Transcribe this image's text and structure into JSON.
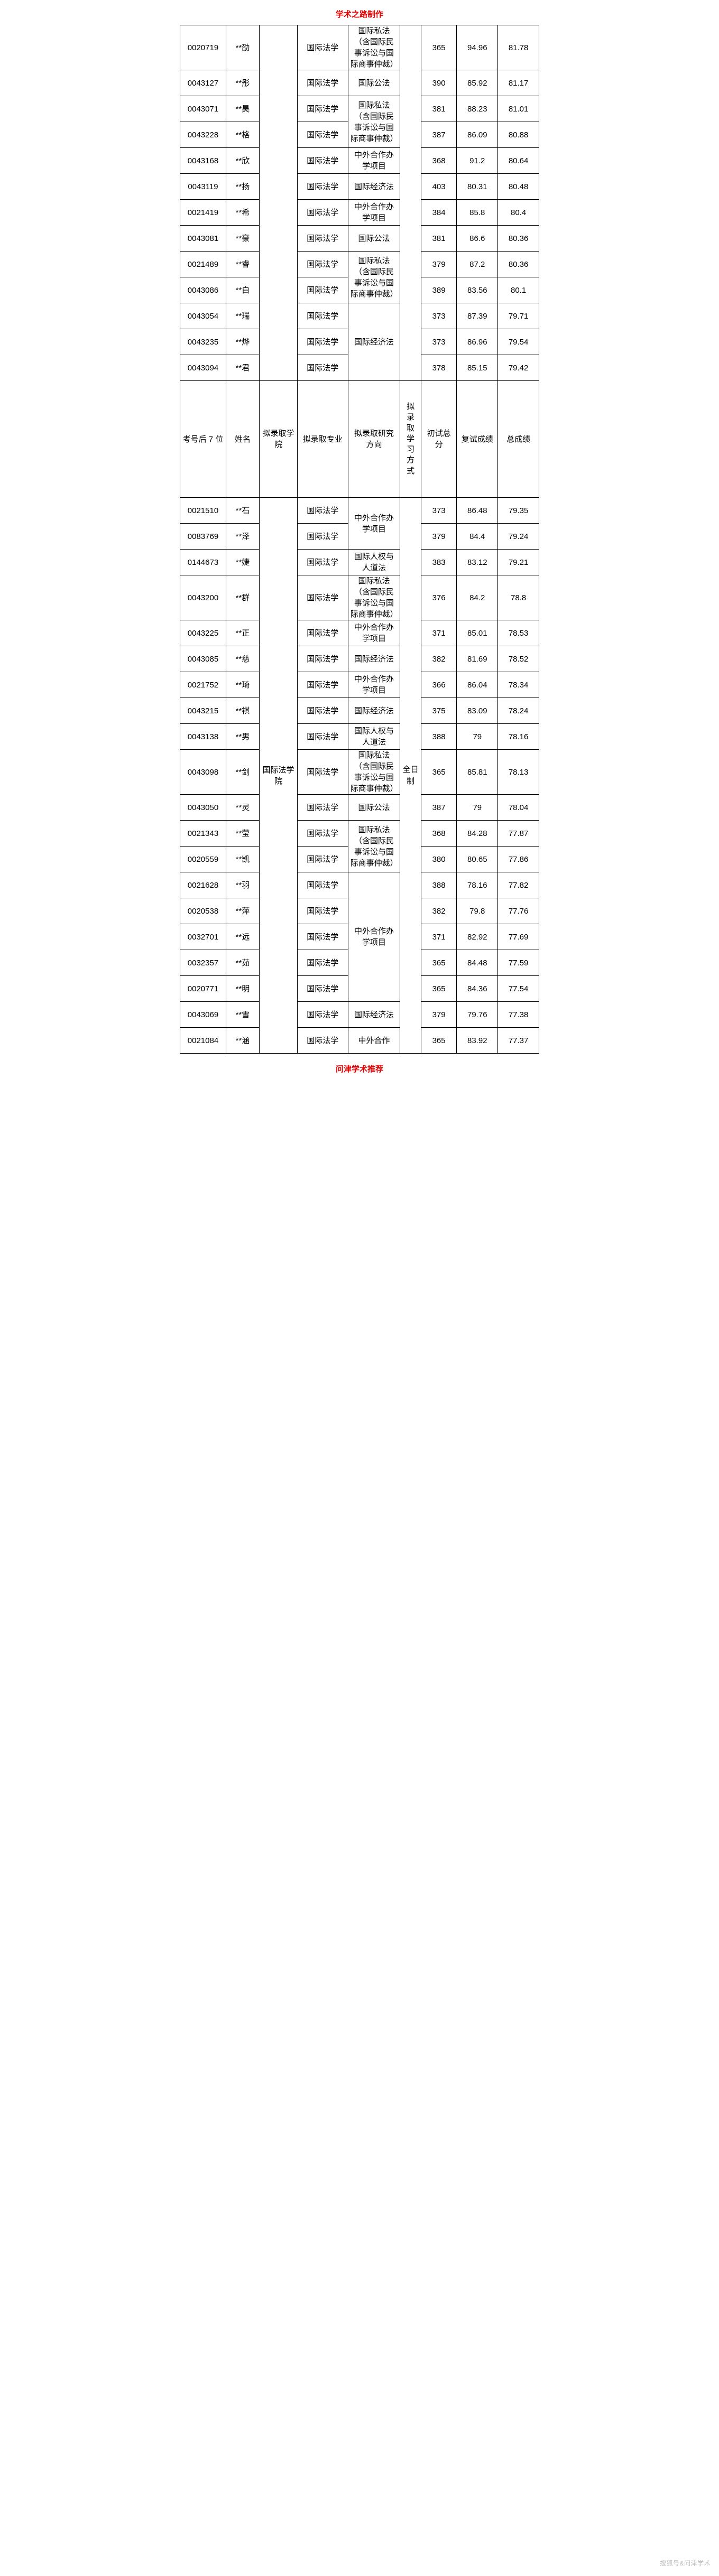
{
  "captions": {
    "top": "学术之路制作",
    "bottom": "问津学术推荐"
  },
  "watermark": "搜狐号&问津学术",
  "header": {
    "id": "考号后 7 位",
    "name": "姓名",
    "college": "拟录取学院",
    "major": "拟录取专业",
    "direction": "拟录取研究方向",
    "mode": "拟录取学习方式",
    "s1": "初试总分",
    "s2": "复试成绩",
    "s3": "总成绩"
  },
  "college": "国际法学院",
  "mode": "全日制",
  "major_label": "国际法学",
  "dir": {
    "priv": "国际私法（含国际民事诉讼与国际商事仲裁）",
    "pub": "国际公法",
    "coop": "中外合作办学项目",
    "coop_short": "中外合作",
    "econ": "国际经济法",
    "hr": "国际人权与人道法"
  },
  "section1": [
    {
      "id": "0020719",
      "name": "**劭",
      "dir": "priv",
      "s1": "365",
      "s2": "94.96",
      "s3": "81.78",
      "tall": true
    },
    {
      "id": "0043127",
      "name": "**彤",
      "dir": "pub",
      "s1": "390",
      "s2": "85.92",
      "s3": "81.17"
    },
    {
      "id": "0043071",
      "name": "**昊",
      "dir": "priv_head",
      "s1": "381",
      "s2": "88.23",
      "s3": "81.01"
    },
    {
      "id": "0043228",
      "name": "**格",
      "dir": "priv_tail",
      "s1": "387",
      "s2": "86.09",
      "s3": "80.88",
      "tall": true
    },
    {
      "id": "0043168",
      "name": "**欣",
      "dir": "coop",
      "s1": "368",
      "s2": "91.2",
      "s3": "80.64"
    },
    {
      "id": "0043119",
      "name": "**扬",
      "dir": "econ",
      "s1": "403",
      "s2": "80.31",
      "s3": "80.48"
    },
    {
      "id": "0021419",
      "name": "**希",
      "dir": "coop",
      "s1": "384",
      "s2": "85.8",
      "s3": "80.4"
    },
    {
      "id": "0043081",
      "name": "**豪",
      "dir": "pub",
      "s1": "381",
      "s2": "86.6",
      "s3": "80.36"
    },
    {
      "id": "0021489",
      "name": "**睿",
      "dir": "priv_head",
      "s1": "379",
      "s2": "87.2",
      "s3": "80.36"
    },
    {
      "id": "0043086",
      "name": "**白",
      "dir": "priv_tail",
      "s1": "389",
      "s2": "83.56",
      "s3": "80.1",
      "tall": true
    },
    {
      "id": "0043054",
      "name": "**瑞",
      "dir": "econ_span3",
      "s1": "373",
      "s2": "87.39",
      "s3": "79.71"
    },
    {
      "id": "0043235",
      "name": "**烨",
      "dir": "",
      "s1": "373",
      "s2": "86.96",
      "s3": "79.54"
    },
    {
      "id": "0043094",
      "name": "**君",
      "dir": "",
      "s1": "378",
      "s2": "85.15",
      "s3": "79.42"
    }
  ],
  "section2": [
    {
      "id": "0021510",
      "name": "**石",
      "dir": "coop_span2",
      "s1": "373",
      "s2": "86.48",
      "s3": "79.35"
    },
    {
      "id": "0083769",
      "name": "**泽",
      "dir": "",
      "s1": "379",
      "s2": "84.4",
      "s3": "79.24"
    },
    {
      "id": "0144673",
      "name": "**婕",
      "dir": "hr",
      "s1": "383",
      "s2": "83.12",
      "s3": "79.21"
    },
    {
      "id": "0043200",
      "name": "**群",
      "dir": "priv",
      "s1": "376",
      "s2": "84.2",
      "s3": "78.8",
      "tall": true
    },
    {
      "id": "0043225",
      "name": "**正",
      "dir": "coop",
      "s1": "371",
      "s2": "85.01",
      "s3": "78.53"
    },
    {
      "id": "0043085",
      "name": "**慈",
      "dir": "econ",
      "s1": "382",
      "s2": "81.69",
      "s3": "78.52"
    },
    {
      "id": "0021752",
      "name": "**琦",
      "dir": "coop",
      "s1": "366",
      "s2": "86.04",
      "s3": "78.34"
    },
    {
      "id": "0043215",
      "name": "**祺",
      "dir": "econ",
      "s1": "375",
      "s2": "83.09",
      "s3": "78.24"
    },
    {
      "id": "0043138",
      "name": "**男",
      "dir": "hr",
      "s1": "388",
      "s2": "79",
      "s3": "78.16"
    },
    {
      "id": "0043098",
      "name": "**剑",
      "dir": "priv",
      "s1": "365",
      "s2": "85.81",
      "s3": "78.13",
      "tall": true
    },
    {
      "id": "0043050",
      "name": "**灵",
      "dir": "pub",
      "s1": "387",
      "s2": "79",
      "s3": "78.04"
    },
    {
      "id": "0021343",
      "name": "**莹",
      "dir": "priv_head",
      "s1": "368",
      "s2": "84.28",
      "s3": "77.87"
    },
    {
      "id": "0020559",
      "name": "**凯",
      "dir": "priv_tail",
      "s1": "380",
      "s2": "80.65",
      "s3": "77.86",
      "tall": true
    },
    {
      "id": "0021628",
      "name": "**羽",
      "dir": "coop_span5",
      "s1": "388",
      "s2": "78.16",
      "s3": "77.82"
    },
    {
      "id": "0020538",
      "name": "**萍",
      "dir": "",
      "s1": "382",
      "s2": "79.8",
      "s3": "77.76"
    },
    {
      "id": "0032701",
      "name": "**远",
      "dir": "",
      "s1": "371",
      "s2": "82.92",
      "s3": "77.69"
    },
    {
      "id": "0032357",
      "name": "**茹",
      "dir": "",
      "s1": "365",
      "s2": "84.48",
      "s3": "77.59"
    },
    {
      "id": "0020771",
      "name": "**明",
      "dir": "",
      "s1": "365",
      "s2": "84.36",
      "s3": "77.54"
    },
    {
      "id": "0043069",
      "name": "**雪",
      "dir": "econ",
      "s1": "379",
      "s2": "79.76",
      "s3": "77.38"
    },
    {
      "id": "0021084",
      "name": "**涵",
      "dir": "coop_short",
      "s1": "365",
      "s2": "83.92",
      "s3": "77.37"
    }
  ]
}
